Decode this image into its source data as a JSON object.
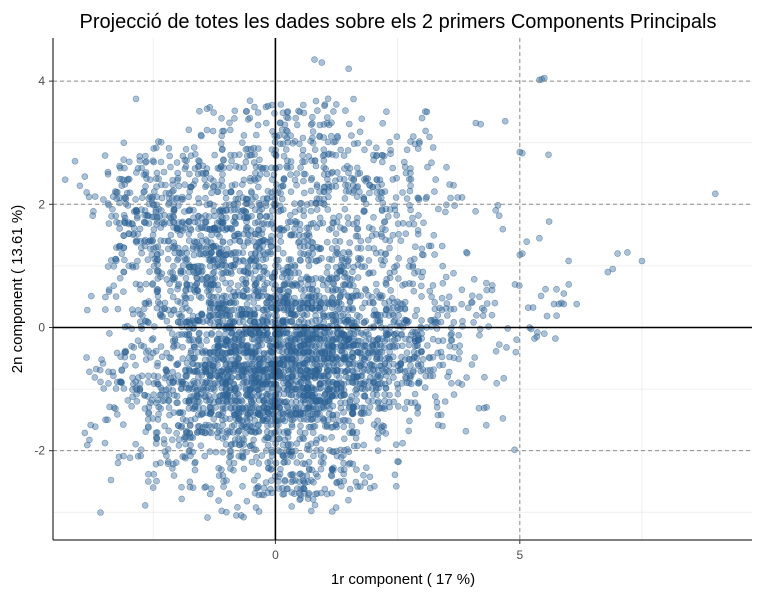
{
  "chart_data": {
    "type": "scatter",
    "title": "Projecció de totes les dades sobre els 2 primers Components Principals",
    "xlabel": "1r component ( 17 %)",
    "ylabel": "2n component ( 13.61 %)",
    "xlim": [
      -4.55,
      9.75
    ],
    "ylim": [
      -3.45,
      4.7
    ],
    "x_ticks": [
      0,
      5
    ],
    "x_tick_labels": [
      "0",
      "5"
    ],
    "y_ticks": [
      -2,
      0,
      2,
      4
    ],
    "y_tick_labels": [
      "-2",
      "0",
      "2",
      "4"
    ],
    "reference_lines": {
      "x": [
        0
      ],
      "y": [
        0
      ]
    },
    "dashed_lines": {
      "x": [
        5
      ],
      "y": [
        -2,
        2,
        4
      ]
    },
    "grid": true,
    "point_color": "#2f6496",
    "point_opacity": 0.4,
    "clusters": [
      {
        "cx": -0.6,
        "cy": -0.8,
        "sx": 1.3,
        "sy": 0.85,
        "n": 1700
      },
      {
        "cx": 0.8,
        "cy": -0.3,
        "sx": 1.1,
        "sy": 0.75,
        "n": 1000
      },
      {
        "cx": -1.2,
        "cy": 1.6,
        "sx": 1.1,
        "sy": 0.75,
        "n": 750
      },
      {
        "cx": 1.6,
        "cy": 2.0,
        "sx": 1.2,
        "sy": 0.65,
        "n": 300
      },
      {
        "cx": 2.6,
        "cy": -0.3,
        "sx": 0.9,
        "sy": 0.55,
        "n": 250
      },
      {
        "cx": 0.6,
        "cy": 3.1,
        "sx": 0.9,
        "sy": 0.35,
        "n": 120
      },
      {
        "cx": 0.8,
        "cy": -2.5,
        "sx": 0.5,
        "sy": 0.2,
        "n": 80
      },
      {
        "cx": -2.7,
        "cy": 1.8,
        "sx": 0.45,
        "sy": 0.5,
        "n": 120
      },
      {
        "cx": 4.5,
        "cy": 0.4,
        "sx": 0.8,
        "sy": 0.5,
        "n": 40
      }
    ],
    "outliers": [
      [
        9.0,
        2.17
      ],
      [
        7.5,
        1.08
      ],
      [
        7.2,
        1.22
      ],
      [
        7.0,
        1.2
      ],
      [
        6.9,
        0.95
      ],
      [
        6.8,
        0.9
      ],
      [
        5.5,
        4.05
      ],
      [
        5.45,
        4.03
      ],
      [
        5.4,
        4.02
      ],
      [
        5.0,
        2.85
      ],
      [
        5.05,
        2.83
      ],
      [
        5.0,
        1.18
      ],
      [
        5.05,
        1.2
      ],
      [
        5.6,
        1.72
      ],
      [
        5.4,
        1.45
      ],
      [
        5.75,
        0.62
      ],
      [
        5.9,
        0.55
      ],
      [
        6.0,
        0.7
      ],
      [
        5.7,
        0.38
      ],
      [
        5.8,
        0.38
      ],
      [
        5.85,
        0.4
      ],
      [
        5.9,
        0.38
      ],
      [
        5.3,
        -0.18
      ],
      [
        4.9,
        0.7
      ],
      [
        0.8,
        4.35
      ],
      [
        0.95,
        4.3
      ],
      [
        -1.4,
        3.55
      ],
      [
        -4.1,
        2.7
      ],
      [
        -4.3,
        2.4
      ],
      [
        -3.9,
        2.45
      ],
      [
        -4.0,
        2.3
      ],
      [
        -3.2,
        -2.1
      ],
      [
        -3.3,
        -1.3
      ],
      [
        -0.7,
        -3.05
      ],
      [
        -0.8,
        -3.05
      ],
      [
        -0.65,
        -3.08
      ],
      [
        -2.5,
        -2.6
      ],
      [
        -2.6,
        -2.5
      ],
      [
        4.7,
        3.35
      ],
      [
        4.2,
        3.3
      ],
      [
        4.1,
        3.32
      ],
      [
        3.1,
        3.5
      ],
      [
        3.0,
        3.4
      ],
      [
        3.5,
        2.6
      ],
      [
        5.2,
        0.0
      ],
      [
        5.5,
        -0.1
      ],
      [
        5.35,
        -0.15
      ],
      [
        1.5,
        4.2
      ],
      [
        1.8,
        -2.4
      ],
      [
        2.1,
        -2.0
      ],
      [
        -3.2,
        1.3
      ],
      [
        -3.0,
        1.0
      ],
      [
        -3.1,
        0.9
      ]
    ]
  }
}
